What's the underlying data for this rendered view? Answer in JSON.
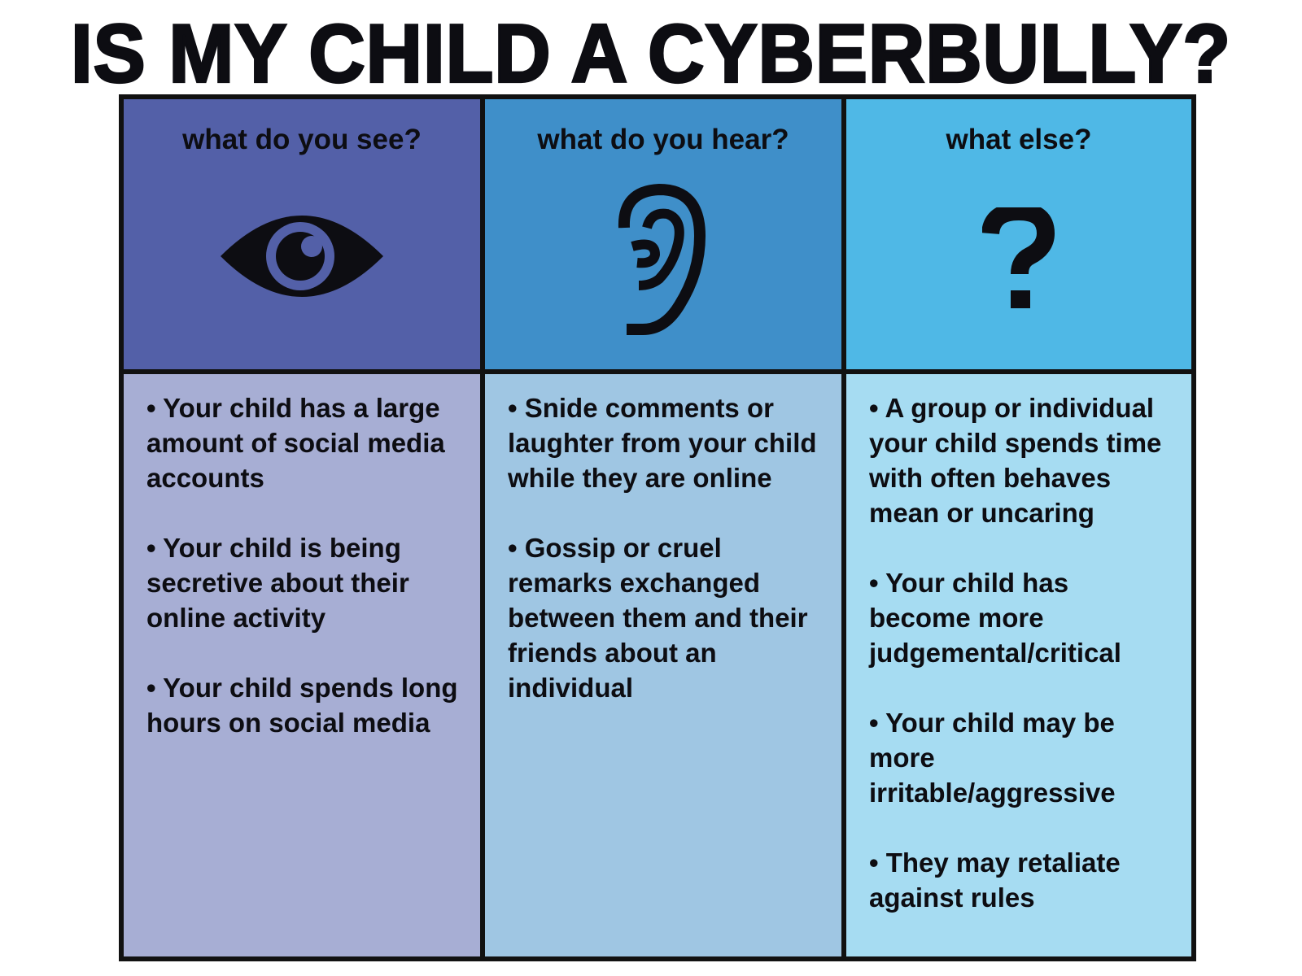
{
  "title": "IS MY CHILD A CYBERBULLY?",
  "colors": {
    "see_header": "#5360a8",
    "hear_header": "#3f8fc9",
    "else_header": "#4fb8e6",
    "see_body": "#a7aed4",
    "hear_body": "#9fc6e3",
    "else_body": "#a6dcf2"
  },
  "columns": [
    {
      "heading": "what do you see?",
      "icon": "eye-icon",
      "items": [
        "• Your child has a large amount of social media accounts",
        "• Your child is being secretive about their online activity",
        "• Your child spends long hours on social media"
      ]
    },
    {
      "heading": "what do you hear?",
      "icon": "ear-icon",
      "items": [
        "• Snide comments or laughter from your child while they are online",
        "• Gossip or cruel remarks exchanged between them and their friends about an individual"
      ]
    },
    {
      "heading": "what else?",
      "icon": "question-mark-icon",
      "items": [
        "• A group or individual your child spends time with often behaves mean or uncaring",
        "• Your child has become more judgemental/critical",
        "• Your child may be more irritable/aggressive",
        "• They may retaliate against rules"
      ]
    }
  ]
}
